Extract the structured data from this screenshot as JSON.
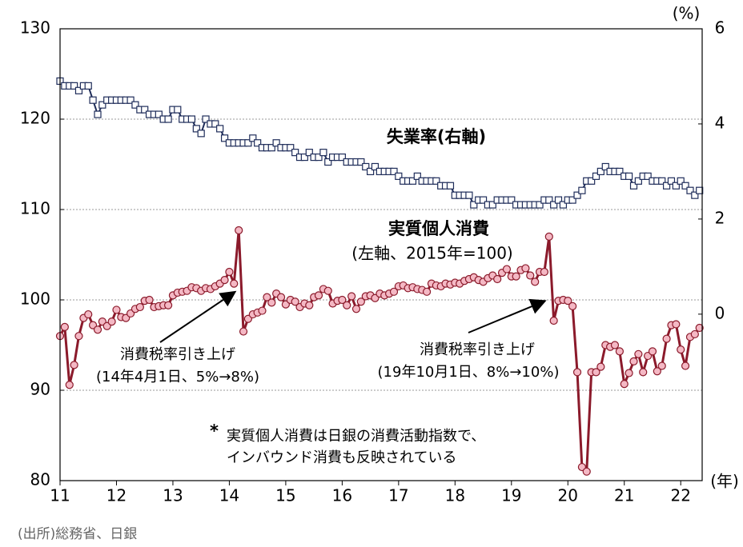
{
  "chart_data": {
    "type": "line",
    "annotations": [
      "失業率(右軸)",
      "実質個人消費",
      "(左軸、2015年=100)",
      "消費税率引き上げ",
      "(14年4月1日、5%→8%)",
      "消費税率引き上げ",
      "(19年10月1日、8%→10%)",
      "*",
      "実質個人消費は日銀の消費活動指数で、",
      "インバウンド消費も反映されている"
    ],
    "y2_unit": "(%)",
    "x_unit": "(年)",
    "source": "(出所)総務省、日銀",
    "xlim": [
      11,
      22.38
    ],
    "xticks": [
      11,
      12,
      13,
      14,
      15,
      16,
      17,
      18,
      19,
      20,
      21,
      22
    ],
    "ylim": [
      80,
      130
    ],
    "yticks": [
      80,
      90,
      100,
      110,
      120,
      130
    ],
    "y2lim": [
      -3.5,
      6
    ],
    "y2ticks": [
      0,
      2,
      4,
      6
    ],
    "grid": true,
    "x": [
      11,
      11.083,
      11.167,
      11.25,
      11.333,
      11.417,
      11.5,
      11.583,
      11.667,
      11.75,
      11.833,
      11.917,
      12,
      12.083,
      12.167,
      12.25,
      12.333,
      12.417,
      12.5,
      12.583,
      12.667,
      12.75,
      12.833,
      12.917,
      13,
      13.083,
      13.167,
      13.25,
      13.333,
      13.417,
      13.5,
      13.583,
      13.667,
      13.75,
      13.833,
      13.917,
      14,
      14.083,
      14.167,
      14.25,
      14.333,
      14.417,
      14.5,
      14.583,
      14.667,
      14.75,
      14.833,
      14.917,
      15,
      15.083,
      15.167,
      15.25,
      15.333,
      15.417,
      15.5,
      15.583,
      15.667,
      15.75,
      15.833,
      15.917,
      16,
      16.083,
      16.167,
      16.25,
      16.333,
      16.417,
      16.5,
      16.583,
      16.667,
      16.75,
      16.833,
      16.917,
      17,
      17.083,
      17.167,
      17.25,
      17.333,
      17.417,
      17.5,
      17.583,
      17.667,
      17.75,
      17.833,
      17.917,
      18,
      18.083,
      18.167,
      18.25,
      18.333,
      18.417,
      18.5,
      18.583,
      18.667,
      18.75,
      18.833,
      18.917,
      19,
      19.083,
      19.167,
      19.25,
      19.333,
      19.417,
      19.5,
      19.583,
      19.667,
      19.75,
      19.833,
      19.917,
      20,
      20.083,
      20.167,
      20.25,
      20.333,
      20.417,
      20.5,
      20.583,
      20.667,
      20.75,
      20.833,
      20.917,
      21,
      21.083,
      21.167,
      21.25,
      21.333,
      21.417,
      21.5,
      21.583,
      21.667,
      21.75,
      21.833,
      21.917,
      22,
      22.083,
      22.167,
      22.25,
      22.333
    ],
    "series": [
      {
        "name": "実質個人消費",
        "color": "#8b1a2b",
        "marker_fill": "#f4b8c4",
        "marker": "circle",
        "axis": "y",
        "values": [
          96.0,
          97.0,
          90.6,
          92.8,
          96.0,
          98.0,
          98.4,
          97.2,
          96.7,
          97.6,
          97.1,
          97.6,
          98.9,
          98.1,
          98.0,
          98.5,
          99.0,
          99.2,
          99.9,
          100.0,
          99.2,
          99.3,
          99.4,
          99.4,
          100.5,
          100.8,
          100.9,
          101.0,
          101.4,
          101.3,
          101.0,
          101.3,
          101.2,
          101.5,
          101.8,
          102.2,
          103.1,
          101.8,
          107.7,
          96.5,
          97.9,
          98.4,
          98.6,
          98.8,
          100.3,
          99.7,
          100.7,
          100.3,
          99.5,
          100.0,
          99.8,
          99.2,
          99.6,
          99.4,
          100.3,
          100.5,
          101.2,
          101.0,
          99.6,
          99.9,
          100.0,
          99.4,
          100.4,
          99.0,
          99.8,
          100.4,
          100.5,
          100.2,
          100.7,
          100.5,
          100.7,
          100.9,
          101.5,
          101.6,
          101.3,
          101.4,
          101.2,
          101.1,
          100.9,
          101.8,
          101.6,
          101.5,
          101.8,
          101.7,
          101.9,
          101.8,
          102.1,
          102.3,
          102.5,
          102.2,
          102.0,
          102.4,
          102.7,
          102.3,
          103.0,
          103.4,
          102.6,
          102.6,
          103.3,
          103.5,
          102.7,
          102.0,
          103.1,
          103.1,
          107.0,
          97.7,
          99.9,
          100.0,
          99.9,
          99.3,
          92.0,
          81.5,
          81.0,
          92.0,
          92.0,
          92.6,
          95.0,
          94.8,
          95.0,
          94.3,
          90.7,
          91.9,
          93.2,
          94.0,
          92.0,
          93.8,
          94.3,
          92.1,
          92.7,
          95.7,
          97.2,
          97.3,
          94.5,
          92.7,
          95.9,
          96.2,
          96.9
        ]
      },
      {
        "name": "失業率",
        "color": "#1f2d5a",
        "marker_fill": "#ffffff",
        "marker": "square",
        "axis": "y2",
        "values": [
          4.9,
          4.8,
          4.8,
          4.8,
          4.7,
          4.8,
          4.8,
          4.5,
          4.2,
          4.4,
          4.5,
          4.5,
          4.5,
          4.5,
          4.5,
          4.5,
          4.4,
          4.3,
          4.3,
          4.2,
          4.2,
          4.2,
          4.1,
          4.1,
          4.3,
          4.3,
          4.1,
          4.1,
          4.1,
          3.9,
          3.8,
          4.1,
          4.0,
          4.0,
          3.9,
          3.7,
          3.6,
          3.6,
          3.6,
          3.6,
          3.6,
          3.7,
          3.6,
          3.5,
          3.5,
          3.5,
          3.6,
          3.5,
          3.5,
          3.5,
          3.4,
          3.3,
          3.3,
          3.4,
          3.3,
          3.3,
          3.4,
          3.2,
          3.3,
          3.3,
          3.3,
          3.2,
          3.2,
          3.2,
          3.2,
          3.1,
          3.0,
          3.1,
          3.0,
          3.0,
          3.0,
          3.0,
          2.9,
          2.8,
          2.8,
          2.8,
          2.9,
          2.8,
          2.8,
          2.8,
          2.8,
          2.7,
          2.7,
          2.7,
          2.5,
          2.5,
          2.5,
          2.5,
          2.3,
          2.4,
          2.4,
          2.3,
          2.3,
          2.4,
          2.4,
          2.4,
          2.4,
          2.3,
          2.3,
          2.3,
          2.3,
          2.3,
          2.3,
          2.4,
          2.4,
          2.3,
          2.4,
          2.3,
          2.4,
          2.4,
          2.5,
          2.6,
          2.8,
          2.8,
          2.9,
          3.0,
          3.1,
          3.0,
          3.0,
          3.0,
          2.9,
          2.9,
          2.7,
          2.8,
          2.9,
          2.9,
          2.8,
          2.8,
          2.8,
          2.7,
          2.8,
          2.7,
          2.8,
          2.7,
          2.6,
          2.5,
          2.6
        ]
      }
    ]
  }
}
